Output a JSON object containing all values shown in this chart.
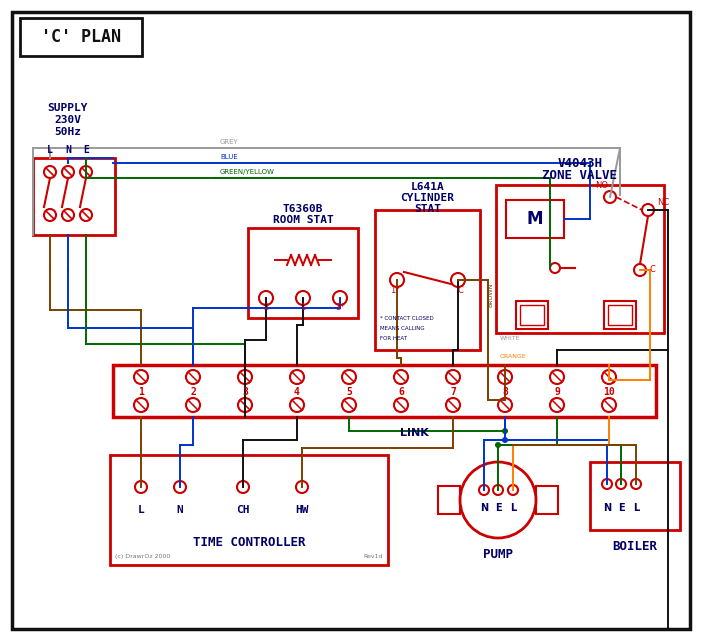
{
  "title": "'C' PLAN",
  "bg": "#ffffff",
  "red": "#cc0000",
  "blue": "#0033cc",
  "green": "#006600",
  "black": "#111111",
  "grey": "#999999",
  "brown": "#7B3F00",
  "orange": "#FF8000",
  "tc": "#000066",
  "supply_lines": [
    "SUPPLY",
    "230V",
    "50Hz"
  ],
  "lne": [
    "L",
    "N",
    "E"
  ],
  "zv_t1": "V4043H",
  "zv_t2": "ZONE VALVE",
  "rs_t1": "T6360B",
  "rs_t2": "ROOM STAT",
  "cs_t1": "L641A",
  "cs_t2": "CYLINDER",
  "cs_t3": "STAT",
  "cs_n1": "* CONTACT CLOSED",
  "cs_n2": "MEANS CALLING",
  "cs_n3": "FOR HEAT",
  "tc_label": "TIME CONTROLLER",
  "tc_terms": [
    "L",
    "N",
    "CH",
    "HW"
  ],
  "pump_label": "PUMP",
  "pump_t": [
    "N",
    "E",
    "L"
  ],
  "boiler_label": "BOILER",
  "boiler_t": [
    "N",
    "E",
    "L"
  ],
  "link_label": "LINK",
  "fn1": "(c) DrawrOz 2000",
  "fn2": "Rev1d",
  "lbl_grey": "GREY",
  "lbl_blue": "BLUE",
  "lbl_gy": "GREEN/YELLOW",
  "lbl_brown": "BROWN",
  "lbl_white": "WHITE",
  "lbl_orange": "ORANGE"
}
